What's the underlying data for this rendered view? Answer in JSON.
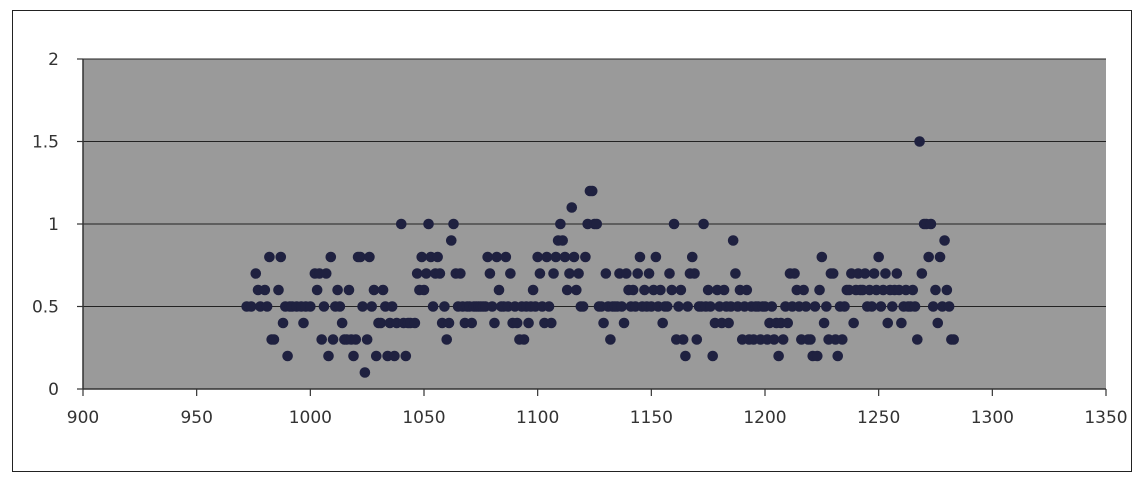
{
  "chart_data": {
    "type": "scatter",
    "title": "",
    "xlabel": "",
    "ylabel": "",
    "xlim": [
      900,
      1350
    ],
    "ylim": [
      0,
      2
    ],
    "x_ticks": [
      900,
      950,
      1000,
      1050,
      1100,
      1150,
      1200,
      1250,
      1300,
      1350
    ],
    "y_ticks": [
      0,
      0.5,
      1,
      1.5,
      2
    ],
    "x_tick_labels": [
      "900",
      "950",
      "1000",
      "1050",
      "1100",
      "1150",
      "1200",
      "1250",
      "1300",
      "1350"
    ],
    "y_tick_labels": [
      "0",
      "0.5",
      "1",
      "1.5",
      "2"
    ],
    "grid": "horizontal",
    "legend": "none",
    "colors": {
      "plot_bg": "#9a9a9a",
      "marker": "#1f2140",
      "grid": "#222222",
      "axis": "#333333"
    },
    "series": [
      {
        "points": [
          [
            972,
            0.5
          ],
          [
            974,
            0.5
          ],
          [
            976,
            0.7
          ],
          [
            977,
            0.6
          ],
          [
            978,
            0.5
          ],
          [
            980,
            0.6
          ],
          [
            981,
            0.5
          ],
          [
            982,
            0.8
          ],
          [
            983,
            0.3
          ],
          [
            984,
            0.3
          ],
          [
            986,
            0.6
          ],
          [
            987,
            0.8
          ],
          [
            988,
            0.4
          ],
          [
            989,
            0.5
          ],
          [
            990,
            0.2
          ],
          [
            991,
            0.5
          ],
          [
            992,
            0.5
          ],
          [
            994,
            0.5
          ],
          [
            996,
            0.5
          ],
          [
            997,
            0.4
          ],
          [
            998,
            0.5
          ],
          [
            1000,
            0.5
          ],
          [
            1002,
            0.7
          ],
          [
            1003,
            0.6
          ],
          [
            1004,
            0.7
          ],
          [
            1005,
            0.3
          ],
          [
            1006,
            0.5
          ],
          [
            1007,
            0.7
          ],
          [
            1008,
            0.2
          ],
          [
            1009,
            0.8
          ],
          [
            1010,
            0.3
          ],
          [
            1011,
            0.5
          ],
          [
            1012,
            0.6
          ],
          [
            1013,
            0.5
          ],
          [
            1014,
            0.4
          ],
          [
            1015,
            0.3
          ],
          [
            1016,
            0.3
          ],
          [
            1017,
            0.6
          ],
          [
            1018,
            0.3
          ],
          [
            1019,
            0.2
          ],
          [
            1020,
            0.3
          ],
          [
            1021,
            0.8
          ],
          [
            1022,
            0.8
          ],
          [
            1023,
            0.5
          ],
          [
            1024,
            0.1
          ],
          [
            1025,
            0.3
          ],
          [
            1026,
            0.8
          ],
          [
            1027,
            0.5
          ],
          [
            1028,
            0.6
          ],
          [
            1029,
            0.2
          ],
          [
            1030,
            0.4
          ],
          [
            1031,
            0.4
          ],
          [
            1032,
            0.6
          ],
          [
            1033,
            0.5
          ],
          [
            1034,
            0.2
          ],
          [
            1035,
            0.4
          ],
          [
            1036,
            0.5
          ],
          [
            1037,
            0.2
          ],
          [
            1038,
            0.4
          ],
          [
            1040,
            1.0
          ],
          [
            1041,
            0.4
          ],
          [
            1042,
            0.2
          ],
          [
            1043,
            0.4
          ],
          [
            1044,
            0.4
          ],
          [
            1046,
            0.4
          ],
          [
            1047,
            0.7
          ],
          [
            1048,
            0.6
          ],
          [
            1049,
            0.8
          ],
          [
            1050,
            0.6
          ],
          [
            1051,
            0.7
          ],
          [
            1052,
            1.0
          ],
          [
            1053,
            0.8
          ],
          [
            1054,
            0.5
          ],
          [
            1055,
            0.7
          ],
          [
            1056,
            0.8
          ],
          [
            1057,
            0.7
          ],
          [
            1058,
            0.4
          ],
          [
            1059,
            0.5
          ],
          [
            1060,
            0.3
          ],
          [
            1061,
            0.4
          ],
          [
            1062,
            0.9
          ],
          [
            1063,
            1.0
          ],
          [
            1064,
            0.7
          ],
          [
            1065,
            0.5
          ],
          [
            1066,
            0.7
          ],
          [
            1067,
            0.5
          ],
          [
            1068,
            0.4
          ],
          [
            1069,
            0.5
          ],
          [
            1070,
            0.5
          ],
          [
            1071,
            0.4
          ],
          [
            1072,
            0.5
          ],
          [
            1073,
            0.5
          ],
          [
            1074,
            0.5
          ],
          [
            1075,
            0.5
          ],
          [
            1076,
            0.5
          ],
          [
            1077,
            0.5
          ],
          [
            1078,
            0.8
          ],
          [
            1079,
            0.7
          ],
          [
            1080,
            0.5
          ],
          [
            1081,
            0.4
          ],
          [
            1082,
            0.8
          ],
          [
            1083,
            0.6
          ],
          [
            1084,
            0.5
          ],
          [
            1085,
            0.5
          ],
          [
            1086,
            0.8
          ],
          [
            1087,
            0.5
          ],
          [
            1088,
            0.7
          ],
          [
            1089,
            0.4
          ],
          [
            1090,
            0.5
          ],
          [
            1091,
            0.4
          ],
          [
            1092,
            0.3
          ],
          [
            1093,
            0.5
          ],
          [
            1094,
            0.3
          ],
          [
            1095,
            0.5
          ],
          [
            1096,
            0.4
          ],
          [
            1097,
            0.5
          ],
          [
            1098,
            0.6
          ],
          [
            1099,
            0.5
          ],
          [
            1100,
            0.8
          ],
          [
            1101,
            0.7
          ],
          [
            1102,
            0.5
          ],
          [
            1103,
            0.4
          ],
          [
            1104,
            0.8
          ],
          [
            1105,
            0.5
          ],
          [
            1106,
            0.4
          ],
          [
            1107,
            0.7
          ],
          [
            1108,
            0.8
          ],
          [
            1109,
            0.9
          ],
          [
            1110,
            1.0
          ],
          [
            1111,
            0.9
          ],
          [
            1112,
            0.8
          ],
          [
            1113,
            0.6
          ],
          [
            1114,
            0.7
          ],
          [
            1115,
            1.1
          ],
          [
            1116,
            0.8
          ],
          [
            1117,
            0.6
          ],
          [
            1118,
            0.7
          ],
          [
            1119,
            0.5
          ],
          [
            1120,
            0.5
          ],
          [
            1121,
            0.8
          ],
          [
            1122,
            1.0
          ],
          [
            1123,
            1.2
          ],
          [
            1124,
            1.2
          ],
          [
            1125,
            1.0
          ],
          [
            1126,
            1.0
          ],
          [
            1127,
            0.5
          ],
          [
            1128,
            0.5
          ],
          [
            1129,
            0.4
          ],
          [
            1130,
            0.7
          ],
          [
            1131,
            0.5
          ],
          [
            1132,
            0.3
          ],
          [
            1133,
            0.5
          ],
          [
            1134,
            0.5
          ],
          [
            1135,
            0.5
          ],
          [
            1136,
            0.7
          ],
          [
            1137,
            0.5
          ],
          [
            1138,
            0.4
          ],
          [
            1139,
            0.7
          ],
          [
            1140,
            0.6
          ],
          [
            1141,
            0.5
          ],
          [
            1142,
            0.6
          ],
          [
            1143,
            0.5
          ],
          [
            1144,
            0.7
          ],
          [
            1145,
            0.8
          ],
          [
            1146,
            0.5
          ],
          [
            1147,
            0.6
          ],
          [
            1148,
            0.5
          ],
          [
            1149,
            0.7
          ],
          [
            1150,
            0.5
          ],
          [
            1151,
            0.6
          ],
          [
            1152,
            0.8
          ],
          [
            1153,
            0.5
          ],
          [
            1154,
            0.6
          ],
          [
            1155,
            0.4
          ],
          [
            1156,
            0.5
          ],
          [
            1157,
            0.5
          ],
          [
            1158,
            0.7
          ],
          [
            1159,
            0.6
          ],
          [
            1160,
            1.0
          ],
          [
            1161,
            0.3
          ],
          [
            1162,
            0.5
          ],
          [
            1163,
            0.6
          ],
          [
            1164,
            0.3
          ],
          [
            1165,
            0.2
          ],
          [
            1166,
            0.5
          ],
          [
            1167,
            0.7
          ],
          [
            1168,
            0.8
          ],
          [
            1169,
            0.7
          ],
          [
            1170,
            0.3
          ],
          [
            1171,
            0.5
          ],
          [
            1172,
            0.5
          ],
          [
            1173,
            1.0
          ],
          [
            1174,
            0.5
          ],
          [
            1175,
            0.6
          ],
          [
            1176,
            0.5
          ],
          [
            1177,
            0.2
          ],
          [
            1178,
            0.4
          ],
          [
            1179,
            0.6
          ],
          [
            1180,
            0.5
          ],
          [
            1181,
            0.4
          ],
          [
            1182,
            0.6
          ],
          [
            1183,
            0.5
          ],
          [
            1184,
            0.4
          ],
          [
            1185,
            0.5
          ],
          [
            1186,
            0.9
          ],
          [
            1187,
            0.7
          ],
          [
            1188,
            0.5
          ],
          [
            1189,
            0.6
          ],
          [
            1190,
            0.3
          ],
          [
            1191,
            0.5
          ],
          [
            1192,
            0.6
          ],
          [
            1193,
            0.3
          ],
          [
            1194,
            0.5
          ],
          [
            1195,
            0.3
          ],
          [
            1196,
            0.5
          ],
          [
            1197,
            0.5
          ],
          [
            1198,
            0.3
          ],
          [
            1199,
            0.5
          ],
          [
            1200,
            0.5
          ],
          [
            1201,
            0.3
          ],
          [
            1202,
            0.4
          ],
          [
            1203,
            0.5
          ],
          [
            1204,
            0.3
          ],
          [
            1205,
            0.4
          ],
          [
            1206,
            0.2
          ],
          [
            1207,
            0.4
          ],
          [
            1208,
            0.3
          ],
          [
            1209,
            0.5
          ],
          [
            1210,
            0.4
          ],
          [
            1211,
            0.7
          ],
          [
            1212,
            0.5
          ],
          [
            1213,
            0.7
          ],
          [
            1214,
            0.6
          ],
          [
            1215,
            0.5
          ],
          [
            1216,
            0.3
          ],
          [
            1217,
            0.6
          ],
          [
            1218,
            0.5
          ],
          [
            1219,
            0.3
          ],
          [
            1220,
            0.3
          ],
          [
            1221,
            0.2
          ],
          [
            1222,
            0.5
          ],
          [
            1223,
            0.2
          ],
          [
            1224,
            0.6
          ],
          [
            1225,
            0.8
          ],
          [
            1226,
            0.4
          ],
          [
            1227,
            0.5
          ],
          [
            1228,
            0.3
          ],
          [
            1229,
            0.7
          ],
          [
            1230,
            0.7
          ],
          [
            1231,
            0.3
          ],
          [
            1232,
            0.2
          ],
          [
            1233,
            0.5
          ],
          [
            1234,
            0.3
          ],
          [
            1235,
            0.5
          ],
          [
            1236,
            0.6
          ],
          [
            1237,
            0.6
          ],
          [
            1238,
            0.7
          ],
          [
            1239,
            0.4
          ],
          [
            1240,
            0.6
          ],
          [
            1241,
            0.7
          ],
          [
            1242,
            0.6
          ],
          [
            1243,
            0.6
          ],
          [
            1244,
            0.7
          ],
          [
            1245,
            0.5
          ],
          [
            1246,
            0.6
          ],
          [
            1247,
            0.5
          ],
          [
            1248,
            0.7
          ],
          [
            1249,
            0.6
          ],
          [
            1250,
            0.8
          ],
          [
            1251,
            0.5
          ],
          [
            1252,
            0.6
          ],
          [
            1253,
            0.7
          ],
          [
            1254,
            0.4
          ],
          [
            1255,
            0.6
          ],
          [
            1256,
            0.5
          ],
          [
            1257,
            0.6
          ],
          [
            1258,
            0.7
          ],
          [
            1259,
            0.6
          ],
          [
            1260,
            0.4
          ],
          [
            1261,
            0.5
          ],
          [
            1262,
            0.6
          ],
          [
            1263,
            0.5
          ],
          [
            1264,
            0.5
          ],
          [
            1265,
            0.6
          ],
          [
            1266,
            0.5
          ],
          [
            1267,
            0.3
          ],
          [
            1268,
            1.5
          ],
          [
            1269,
            0.7
          ],
          [
            1270,
            1.0
          ],
          [
            1271,
            1.0
          ],
          [
            1272,
            0.8
          ],
          [
            1273,
            1.0
          ],
          [
            1274,
            0.5
          ],
          [
            1275,
            0.6
          ],
          [
            1276,
            0.4
          ],
          [
            1277,
            0.8
          ],
          [
            1278,
            0.5
          ],
          [
            1279,
            0.9
          ],
          [
            1280,
            0.6
          ],
          [
            1281,
            0.5
          ],
          [
            1282,
            0.3
          ],
          [
            1283,
            0.3
          ]
        ]
      }
    ]
  }
}
